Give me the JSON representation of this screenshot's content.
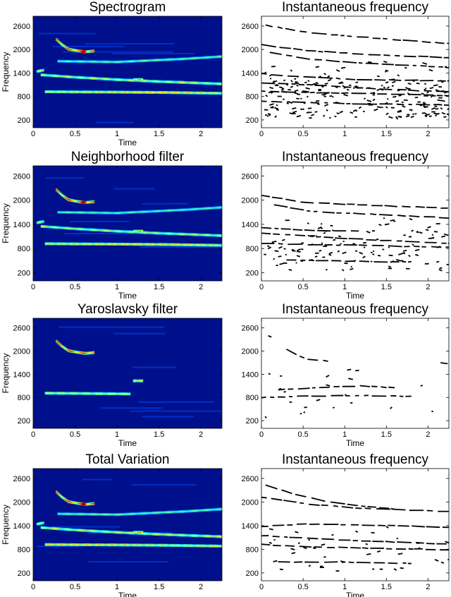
{
  "chart_data": [
    {
      "type": "heatmap",
      "title": "Spectrogram",
      "xlabel": "Time",
      "ylabel": "Frequency",
      "x_ticks": [
        "0",
        "0.5",
        "1",
        "1.5",
        "2"
      ],
      "y_ticks": [
        "200",
        "800",
        "1400",
        "2000",
        "2600"
      ],
      "xlim": [
        0,
        2.25
      ],
      "ylim": [
        0,
        2850
      ],
      "colormap": "jet",
      "background": "#00108c",
      "tracks": [
        {
          "x": [
            0.15,
            0.5,
            1.0,
            1.6,
            2.25
          ],
          "y": [
            920,
            915,
            910,
            900,
            880
          ],
          "level": 0.7
        },
        {
          "x": [
            0.1,
            0.5,
            1.0,
            1.5,
            2.25
          ],
          "y": [
            1350,
            1290,
            1230,
            1180,
            1120
          ],
          "level": 0.55
        },
        {
          "x": [
            0.28,
            0.34,
            0.42,
            0.52,
            0.62,
            0.72
          ],
          "y": [
            2250,
            2130,
            2010,
            1970,
            1940,
            1960
          ],
          "level": 1.0
        },
        {
          "x": [
            0.3,
            1.0,
            1.8,
            2.25
          ],
          "y": [
            1700,
            1680,
            1760,
            1820
          ],
          "level": 0.35
        },
        {
          "x": [
            1.2,
            1.3
          ],
          "y": [
            1230,
            1230
          ],
          "level": 0.8
        },
        {
          "x": [
            0.05,
            0.12
          ],
          "y": [
            1440,
            1470
          ],
          "level": 0.6
        }
      ]
    },
    {
      "type": "scatter",
      "title": "Instantaneous frequency",
      "xlabel": "",
      "ylabel": "",
      "x_ticks": [
        "0",
        "0.5",
        "1",
        "1.5",
        "2"
      ],
      "y_ticks": [
        "200",
        "800",
        "1400",
        "2000",
        "2600"
      ],
      "xlim": [
        0,
        2.25
      ],
      "ylim": [
        0,
        2850
      ],
      "noise": 0.9,
      "tracks": [
        [
          [
            0.05,
            2620
          ],
          [
            0.6,
            2420
          ],
          [
            1.0,
            2350
          ],
          [
            2.25,
            2150
          ]
        ],
        [
          [
            0.0,
            2120
          ],
          [
            0.5,
            1980
          ],
          [
            1.2,
            1880
          ],
          [
            2.25,
            1790
          ]
        ],
        [
          [
            0.1,
            1920
          ],
          [
            0.6,
            1750
          ],
          [
            1.2,
            1650
          ],
          [
            2.25,
            1540
          ]
        ],
        [
          [
            0.0,
            1380
          ],
          [
            0.5,
            1300
          ],
          [
            1.2,
            1230
          ],
          [
            2.25,
            1200
          ]
        ],
        [
          [
            0.0,
            1150
          ],
          [
            0.7,
            1080
          ],
          [
            1.5,
            980
          ],
          [
            2.25,
            920
          ]
        ],
        [
          [
            0.0,
            930
          ],
          [
            0.5,
            900
          ],
          [
            1.2,
            880
          ],
          [
            2.25,
            820
          ]
        ],
        [
          [
            0.0,
            680
          ],
          [
            0.6,
            640
          ],
          [
            1.2,
            610
          ],
          [
            2.25,
            580
          ]
        ]
      ]
    },
    {
      "type": "heatmap",
      "title": "Neighborhood filter",
      "xlabel": "Time",
      "ylabel": "Frequency",
      "x_ticks": [
        "0",
        "0.5",
        "1",
        "1.5",
        "2"
      ],
      "y_ticks": [
        "200",
        "800",
        "1400",
        "2000",
        "2600"
      ],
      "xlim": [
        0,
        2.25
      ],
      "ylim": [
        0,
        2850
      ],
      "colormap": "jet",
      "background": "#00108c",
      "tracks": [
        {
          "x": [
            0.15,
            0.5,
            1.0,
            1.6,
            2.25
          ],
          "y": [
            920,
            915,
            910,
            900,
            880
          ],
          "level": 0.7
        },
        {
          "x": [
            0.1,
            0.5,
            1.0,
            1.5,
            2.25
          ],
          "y": [
            1350,
            1290,
            1230,
            1180,
            1120
          ],
          "level": 0.5
        },
        {
          "x": [
            0.28,
            0.34,
            0.42,
            0.52,
            0.62,
            0.72
          ],
          "y": [
            2250,
            2130,
            2010,
            1970,
            1940,
            1960
          ],
          "level": 1.0
        },
        {
          "x": [
            0.3,
            1.0,
            1.8,
            2.25
          ],
          "y": [
            1700,
            1680,
            1760,
            1820
          ],
          "level": 0.3
        },
        {
          "x": [
            1.2,
            1.3
          ],
          "y": [
            1230,
            1230
          ],
          "level": 0.8
        },
        {
          "x": [
            0.05,
            0.12
          ],
          "y": [
            1440,
            1470
          ],
          "level": 0.55
        }
      ]
    },
    {
      "type": "scatter",
      "title": "Instantaneous frequency",
      "xlabel": "Time",
      "ylabel": "",
      "x_ticks": [
        "0",
        "0.5",
        "1",
        "1.5",
        "2"
      ],
      "y_ticks": [
        "200",
        "800",
        "1400",
        "2000",
        "2600"
      ],
      "xlim": [
        0,
        2.25
      ],
      "ylim": [
        0,
        2850
      ],
      "noise": 0.45,
      "tracks": [
        [
          [
            0.0,
            2120
          ],
          [
            0.5,
            1950
          ],
          [
            1.2,
            1880
          ],
          [
            2.25,
            1800
          ]
        ],
        [
          [
            0.15,
            1880
          ],
          [
            0.6,
            1720
          ],
          [
            1.2,
            1660
          ],
          [
            2.25,
            1560
          ]
        ],
        [
          [
            0.0,
            1320
          ],
          [
            0.6,
            1250
          ],
          [
            1.2,
            1230
          ]
        ],
        [
          [
            0.0,
            1180
          ],
          [
            0.7,
            1090
          ],
          [
            1.5,
            1000
          ],
          [
            2.25,
            930
          ]
        ],
        [
          [
            0.0,
            930
          ],
          [
            0.5,
            900
          ],
          [
            1.2,
            880
          ],
          [
            2.25,
            830
          ]
        ],
        [
          [
            0.3,
            520
          ],
          [
            1.2,
            480
          ],
          [
            1.8,
            470
          ]
        ]
      ]
    },
    {
      "type": "heatmap",
      "title": "Yaroslavsky filter",
      "xlabel": "Time",
      "ylabel": "Frequency",
      "x_ticks": [
        "0",
        "0.5",
        "1",
        "1.5",
        "2"
      ],
      "y_ticks": [
        "200",
        "800",
        "1400",
        "2000",
        "2600"
      ],
      "xlim": [
        0,
        2.25
      ],
      "ylim": [
        0,
        2850
      ],
      "colormap": "jet",
      "background": "#00108c",
      "tracks": [
        {
          "x": [
            0.15,
            0.5,
            0.95,
            1.15
          ],
          "y": [
            910,
            905,
            895,
            890
          ],
          "level": 0.65
        },
        {
          "x": [
            0.28,
            0.34,
            0.42,
            0.52,
            0.62,
            0.72
          ],
          "y": [
            2250,
            2130,
            2010,
            1970,
            1940,
            1960
          ],
          "level": 1.0
        },
        {
          "x": [
            1.2,
            1.3
          ],
          "y": [
            1230,
            1230
          ],
          "level": 0.7
        }
      ]
    },
    {
      "type": "scatter",
      "title": "Instantaneous frequency",
      "xlabel": "Time",
      "ylabel": "",
      "x_ticks": [
        "0",
        "0.5",
        "1",
        "1.5",
        "2"
      ],
      "y_ticks": [
        "200",
        "800",
        "1400",
        "2000",
        "2600"
      ],
      "xlim": [
        0,
        2.25
      ],
      "ylim": [
        0,
        2850
      ],
      "noise": 0.08,
      "tracks": [
        [
          [
            0.3,
            2040
          ],
          [
            0.4,
            1920
          ],
          [
            0.55,
            1790
          ],
          [
            0.8,
            1740
          ]
        ],
        [
          [
            0.2,
            1000
          ],
          [
            0.7,
            1060
          ],
          [
            1.2,
            1100
          ],
          [
            1.6,
            1050
          ]
        ],
        [
          [
            0.0,
            800
          ],
          [
            0.5,
            830
          ],
          [
            1.2,
            850
          ],
          [
            1.8,
            830
          ]
        ],
        [
          [
            2.15,
            1700
          ],
          [
            2.25,
            1660
          ]
        ],
        [
          [
            0.08,
            2400
          ],
          [
            0.12,
            2360
          ]
        ]
      ]
    },
    {
      "type": "heatmap",
      "title": "Total Variation",
      "xlabel": "Time",
      "ylabel": "Frequency",
      "x_ticks": [
        "0",
        "0.5",
        "1",
        "1.5",
        "2"
      ],
      "y_ticks": [
        "200",
        "800",
        "1400",
        "2000",
        "2600"
      ],
      "xlim": [
        0,
        2.25
      ],
      "ylim": [
        0,
        2850
      ],
      "colormap": "jet",
      "background": "#00108c",
      "tracks": [
        {
          "x": [
            0.15,
            0.5,
            1.0,
            1.6,
            2.25
          ],
          "y": [
            920,
            915,
            910,
            900,
            880
          ],
          "level": 0.7
        },
        {
          "x": [
            0.1,
            0.5,
            1.0,
            1.5,
            2.25
          ],
          "y": [
            1350,
            1290,
            1230,
            1180,
            1120
          ],
          "level": 0.55
        },
        {
          "x": [
            0.28,
            0.34,
            0.42,
            0.52,
            0.62,
            0.72
          ],
          "y": [
            2250,
            2130,
            2010,
            1970,
            1940,
            1960
          ],
          "level": 1.0
        },
        {
          "x": [
            0.3,
            1.0,
            1.8,
            2.25
          ],
          "y": [
            1700,
            1680,
            1760,
            1820
          ],
          "level": 0.35
        },
        {
          "x": [
            1.2,
            1.3
          ],
          "y": [
            1230,
            1230
          ],
          "level": 0.8
        },
        {
          "x": [
            0.05,
            0.12
          ],
          "y": [
            1440,
            1470
          ],
          "level": 0.6
        }
      ]
    },
    {
      "type": "scatter",
      "title": "Instantaneous frequency",
      "xlabel": "Time",
      "ylabel": "",
      "x_ticks": [
        "0",
        "0.5",
        "1",
        "1.5",
        "2"
      ],
      "y_ticks": [
        "200",
        "800",
        "1400",
        "2000",
        "2600"
      ],
      "xlim": [
        0,
        2.25
      ],
      "ylim": [
        0,
        2850
      ],
      "noise": 0.15,
      "tracks": [
        [
          [
            0.05,
            2430
          ],
          [
            0.4,
            2200
          ],
          [
            0.8,
            2000
          ],
          [
            1.2,
            1900
          ],
          [
            1.6,
            1820
          ]
        ],
        [
          [
            0.0,
            2120
          ],
          [
            0.6,
            1940
          ],
          [
            1.2,
            1840
          ],
          [
            2.25,
            1760
          ]
        ],
        [
          [
            0.0,
            1380
          ],
          [
            0.5,
            1440
          ],
          [
            1.2,
            1420
          ],
          [
            2.25,
            1360
          ]
        ],
        [
          [
            0.0,
            1150
          ],
          [
            0.7,
            1060
          ],
          [
            1.4,
            1000
          ],
          [
            2.25,
            930
          ]
        ],
        [
          [
            0.0,
            920
          ],
          [
            0.6,
            860
          ],
          [
            1.5,
            820
          ],
          [
            2.25,
            790
          ]
        ],
        [
          [
            0.2,
            480
          ],
          [
            1.0,
            470
          ],
          [
            1.8,
            440
          ]
        ]
      ]
    }
  ]
}
